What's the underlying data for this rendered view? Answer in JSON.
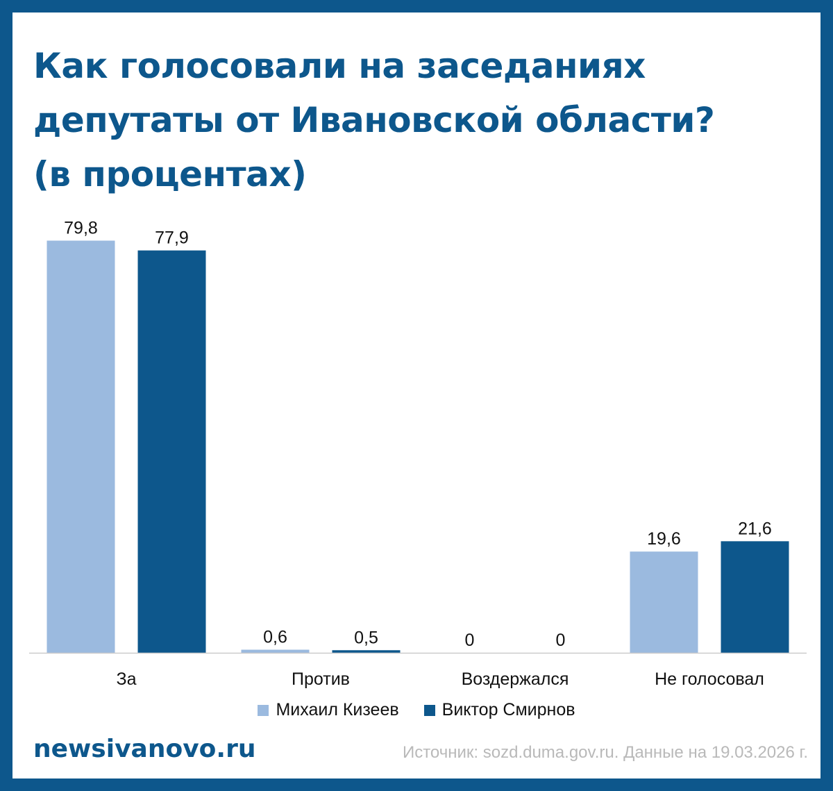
{
  "title_lines": [
    "Как голосовали на заседаниях",
    "депутаты от Ивановской области?",
    "(в процентах)"
  ],
  "brand": "newsivanovo.ru",
  "source": "Источник: sozd.duma.gov.ru. Данные на 19.03.2026 г.",
  "colors": {
    "frame": "#0d578c",
    "series_1": "#9bbadf",
    "series_2": "#0d578c",
    "axis": "#cccccc"
  },
  "chart_data": {
    "type": "bar",
    "title": "Как голосовали на заседаниях депутаты от Ивановской области? (в процентах)",
    "categories": [
      "За",
      "Против",
      "Воздержался",
      "Не голосовал"
    ],
    "series": [
      {
        "name": "Михаил Кизеев",
        "values": [
          79.8,
          0.6,
          0,
          19.6
        ],
        "labels": [
          "79,8",
          "0,6",
          "0",
          "19,6"
        ]
      },
      {
        "name": "Виктор Смирнов",
        "values": [
          77.9,
          0.5,
          0,
          21.6
        ],
        "labels": [
          "77,9",
          "0,5",
          "0",
          "21,6"
        ]
      }
    ],
    "xlabel": "",
    "ylabel": "",
    "ylim": [
      0,
      80
    ],
    "grid": false,
    "legend": "bottom-center"
  }
}
